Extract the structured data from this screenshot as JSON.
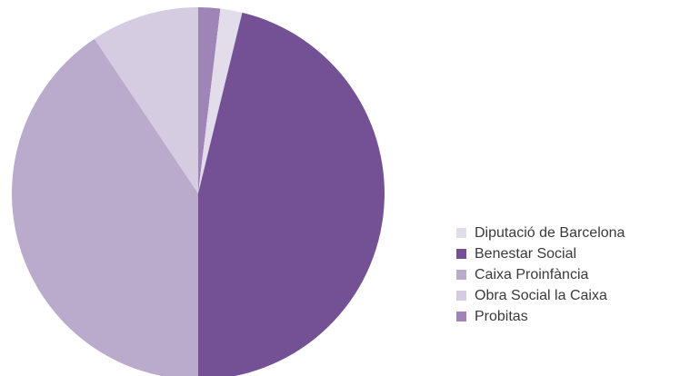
{
  "chart_data": {
    "type": "pie",
    "start_angle_deg": 0,
    "direction": "clockwise",
    "slices": [
      {
        "label": "Probitas",
        "value": 1.9,
        "color": "#9e84b7"
      },
      {
        "label": "Diputació de Barcelona",
        "value": 1.9,
        "color": "#e3dcea"
      },
      {
        "label": "Benestar Social",
        "value": 46.2,
        "color": "#735194"
      },
      {
        "label": "Caixa Proinfància",
        "value": 40.6,
        "color": "#baabcd"
      },
      {
        "label": "Obra Social la Caixa",
        "value": 9.4,
        "color": "#d6cce2"
      }
    ],
    "legend": {
      "placement": "right",
      "entries": [
        {
          "label": "Diputació de Barcelona",
          "color": "#e3dcea"
        },
        {
          "label": "Benestar Social",
          "color": "#735194"
        },
        {
          "label": "Caixa Proinfància",
          "color": "#baabcd"
        },
        {
          "label": "Obra Social la Caixa",
          "color": "#d6cce2"
        },
        {
          "label": "Probitas",
          "color": "#9e84b7"
        }
      ]
    }
  }
}
